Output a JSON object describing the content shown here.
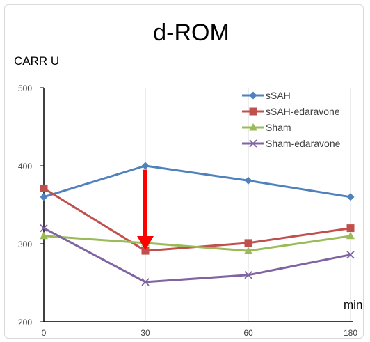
{
  "chart_data": {
    "type": "line",
    "title": "d-ROM",
    "ylabel": "CARR U",
    "xlabel": "min",
    "categories": [
      "0",
      "30",
      "60",
      "180"
    ],
    "ylim": [
      200,
      500
    ],
    "yticks": [
      200,
      300,
      400,
      500
    ],
    "grid": "vertical",
    "legend_position": "top-right",
    "series": [
      {
        "name": "sSAH",
        "values": [
          360,
          400,
          381,
          360
        ],
        "color": "#4f81bd",
        "marker": "diamond"
      },
      {
        "name": "sSAH-edaravone",
        "values": [
          371,
          291,
          301,
          320
        ],
        "color": "#c0504d",
        "marker": "square"
      },
      {
        "name": "Sham",
        "values": [
          310,
          301,
          291,
          310
        ],
        "color": "#9bbb59",
        "marker": "triangle"
      },
      {
        "name": "Sham-edaravone",
        "values": [
          320,
          251,
          260,
          286
        ],
        "color": "#8064a2",
        "marker": "x"
      }
    ],
    "annotation": {
      "type": "arrow",
      "color": "#ff0000",
      "x_category": "30",
      "from_value": 395,
      "to_value": 292
    }
  }
}
